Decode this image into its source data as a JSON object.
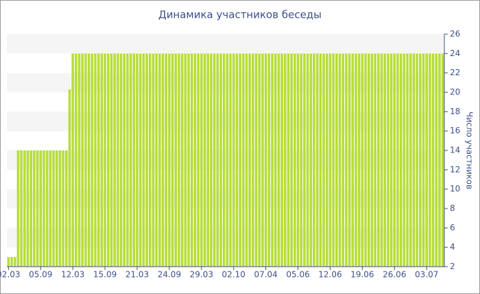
{
  "chart_data": {
    "type": "bar",
    "title": "Динамика участников беседы",
    "y_label": "Число участников",
    "categories": [
      "02.03",
      null,
      null,
      null,
      null,
      null,
      null,
      null,
      null,
      null,
      "05.09",
      null,
      null,
      null,
      null,
      null,
      null,
      null,
      null,
      null,
      "12.03",
      null,
      null,
      null,
      null,
      null,
      null,
      null,
      null,
      null,
      "15.09",
      null,
      null,
      null,
      null,
      null,
      null,
      null,
      null,
      null,
      "21.03",
      null,
      null,
      null,
      null,
      null,
      null,
      null,
      null,
      null,
      "24.09",
      null,
      null,
      null,
      null,
      null,
      null,
      null,
      null,
      null,
      "29.03",
      null,
      null,
      null,
      null,
      null,
      null,
      null,
      null,
      null,
      "02.10",
      null,
      null,
      null,
      null,
      null,
      null,
      null,
      null,
      null,
      "07.04",
      null,
      null,
      null,
      null,
      null,
      null,
      null,
      null,
      null,
      "05.06",
      null,
      null,
      null,
      null,
      null,
      null,
      null,
      null,
      null,
      "12.06",
      null,
      null,
      null,
      null,
      null,
      null,
      null,
      null,
      null,
      "19.06",
      null,
      null,
      null,
      null,
      null,
      null,
      null,
      null,
      null,
      "26.06",
      null,
      null,
      null,
      null,
      null,
      null,
      null,
      null,
      null,
      "03.07",
      null,
      null,
      null,
      null,
      null
    ],
    "values": [
      3,
      3,
      3,
      14,
      14,
      14,
      14,
      14,
      14,
      14,
      14,
      14,
      14,
      14,
      14,
      14,
      14,
      14,
      14,
      20.3,
      24,
      24,
      24,
      24,
      24,
      24,
      24,
      24,
      24,
      24,
      24,
      24,
      24,
      24,
      24,
      24,
      24,
      24,
      24,
      24,
      24,
      24,
      24,
      24,
      24,
      24,
      24,
      24,
      24,
      24,
      24,
      24,
      24,
      24,
      24,
      24,
      24,
      24,
      24,
      24,
      24,
      24,
      24,
      24,
      24,
      24,
      24,
      24,
      24,
      24,
      24,
      24,
      24,
      24,
      24,
      24,
      24,
      24,
      24,
      24,
      24,
      24,
      24,
      24,
      24,
      24,
      24,
      24,
      24,
      24,
      24,
      24,
      24,
      24,
      24,
      24,
      24,
      24,
      24,
      24,
      24,
      24,
      24,
      24,
      24,
      24,
      24,
      24,
      24,
      24,
      24,
      24,
      24,
      24,
      24,
      24,
      24,
      24,
      24,
      24,
      24,
      24,
      24,
      24,
      24,
      24,
      24,
      24,
      24,
      24,
      24,
      24,
      24,
      24,
      24,
      24
    ],
    "color": "#b7dd3a",
    "ylim": [
      2,
      26
    ],
    "yticks": [
      2,
      4,
      6,
      8,
      10,
      12,
      14,
      16,
      18,
      20,
      22,
      24,
      26
    ],
    "grid": "bands",
    "y_axis_side": "right"
  }
}
